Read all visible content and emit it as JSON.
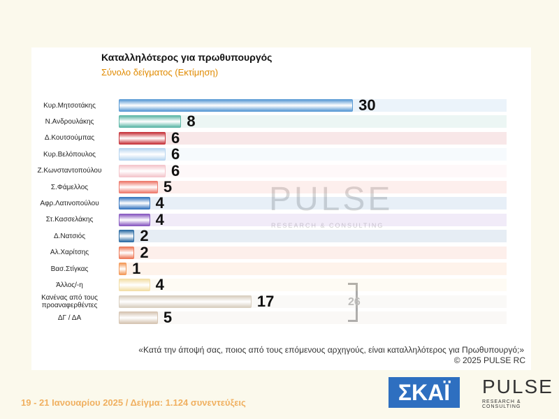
{
  "chart_data": {
    "type": "bar",
    "orientation": "horizontal",
    "title": "Καταλληλότερος για πρωθυπουργός",
    "subtitle": "Σύνολο δείγματος   (Εκτίμηση)",
    "categories": [
      "Κυρ.Μητσοτάκης",
      "Ν.Ανδρουλάκης",
      "Δ.Κουτσούμπας",
      "Κυρ.Βελόπουλος",
      "Ζ.Κωνσταντοπούλου",
      "Σ.Φάμελλος",
      "Αφρ.Λατινοπούλου",
      "Στ.Κασσελάκης",
      "Δ.Νατσιός",
      "Αλ.Χαρίτσης",
      "Βασ.Στίγκας",
      "Άλλος/-η",
      "Κανένας από τους προαναφερθέντες",
      "ΔΓ / ΔΑ"
    ],
    "values": [
      30,
      8,
      6,
      6,
      6,
      5,
      4,
      4,
      2,
      2,
      1,
      4,
      17,
      5
    ],
    "colors": [
      "#5b9bd5",
      "#5fb8a8",
      "#c8383f",
      "#b9d6f0",
      "#f4c6cc",
      "#ee7b6e",
      "#3a78c0",
      "#8a5cc2",
      "#2f6ea5",
      "#ee7c5b",
      "#f39a5a",
      "#f3dfa8",
      "#d9cfc0",
      "#d6c5b3"
    ],
    "annotation": 26,
    "question": "«Κατά την άποψή σας, ποιος από τους επόμενους αρχηγούς, είναι καταλληλότερος για Πρωθυπουργό;»",
    "copyright": "©  2025  PULSE RC",
    "watermark": "PULSE",
    "watermark_sub": "RESEARCH & CONSULTING"
  },
  "footer": {
    "dates": "19 - 21 Ιανουαρίου 2025  /  Δείγμα:  1.124 συνεντεύξεις",
    "logo_skai": "ΣΚΑΪ",
    "logo_pulse": "PULSE",
    "logo_pulse_sub": "RESEARCH & CONSULTING"
  }
}
